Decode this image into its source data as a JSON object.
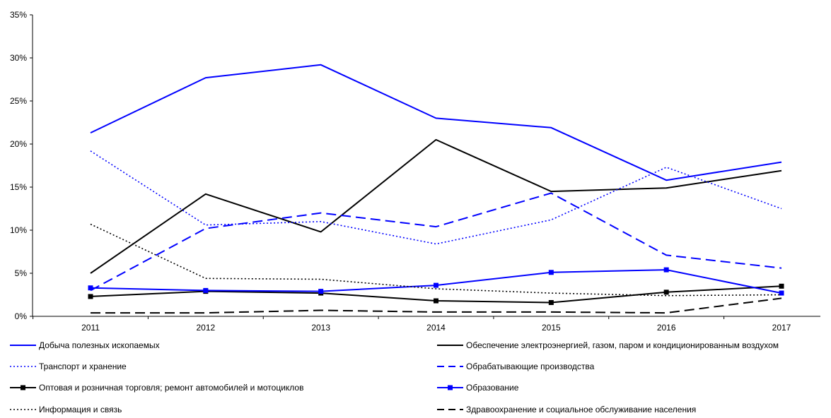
{
  "chart_data": {
    "type": "line",
    "title": "",
    "xlabel": "",
    "ylabel": "",
    "x": [
      "2011",
      "2012",
      "2013",
      "2014",
      "2015",
      "2016",
      "2017"
    ],
    "ylim": [
      0,
      35
    ],
    "y_ticks": [
      "0%",
      "5%",
      "10%",
      "15%",
      "20%",
      "25%",
      "30%",
      "35%"
    ],
    "grid": false,
    "legend_position": "bottom",
    "series": [
      {
        "name": "Добыча полезных ископаемых",
        "color": "#0000ff",
        "style": "solid",
        "marker": "none",
        "values": [
          21.3,
          27.7,
          29.2,
          23.0,
          21.9,
          15.8,
          17.9
        ]
      },
      {
        "name": "Обеспечение электроэнергией, газом, паром и кондиционированным воздухом",
        "color": "#000000",
        "style": "solid",
        "marker": "none",
        "values": [
          5.0,
          14.2,
          9.8,
          20.5,
          14.5,
          14.9,
          16.9
        ]
      },
      {
        "name": "Транспорт и хранение",
        "color": "#0000ff",
        "style": "dotted",
        "marker": "none",
        "values": [
          19.2,
          10.6,
          11.0,
          8.4,
          11.2,
          17.3,
          12.5
        ]
      },
      {
        "name": "Обрабатывающие производства",
        "color": "#0000ff",
        "style": "dashed",
        "marker": "none",
        "values": [
          3.0,
          10.2,
          12.0,
          10.4,
          14.3,
          7.1,
          5.6
        ]
      },
      {
        "name": "Оптовая и розничная торговля; ремонт автомобилей и мотоциклов",
        "color": "#000000",
        "style": "solid",
        "marker": "square",
        "values": [
          2.3,
          2.9,
          2.7,
          1.8,
          1.6,
          2.8,
          3.5
        ]
      },
      {
        "name": "Образование",
        "color": "#0000ff",
        "style": "solid",
        "marker": "square",
        "values": [
          3.3,
          3.0,
          2.9,
          3.6,
          5.1,
          5.4,
          2.7
        ]
      },
      {
        "name": "Информация и связь",
        "color": "#000000",
        "style": "dotted",
        "marker": "none",
        "values": [
          10.7,
          4.4,
          4.3,
          3.2,
          2.7,
          2.4,
          2.5
        ]
      },
      {
        "name": "Здравоохранение и социальное обслуживание населения",
        "color": "#000000",
        "style": "dashed",
        "marker": "none",
        "values": [
          0.4,
          0.4,
          0.7,
          0.5,
          0.5,
          0.4,
          2.1
        ]
      }
    ]
  }
}
